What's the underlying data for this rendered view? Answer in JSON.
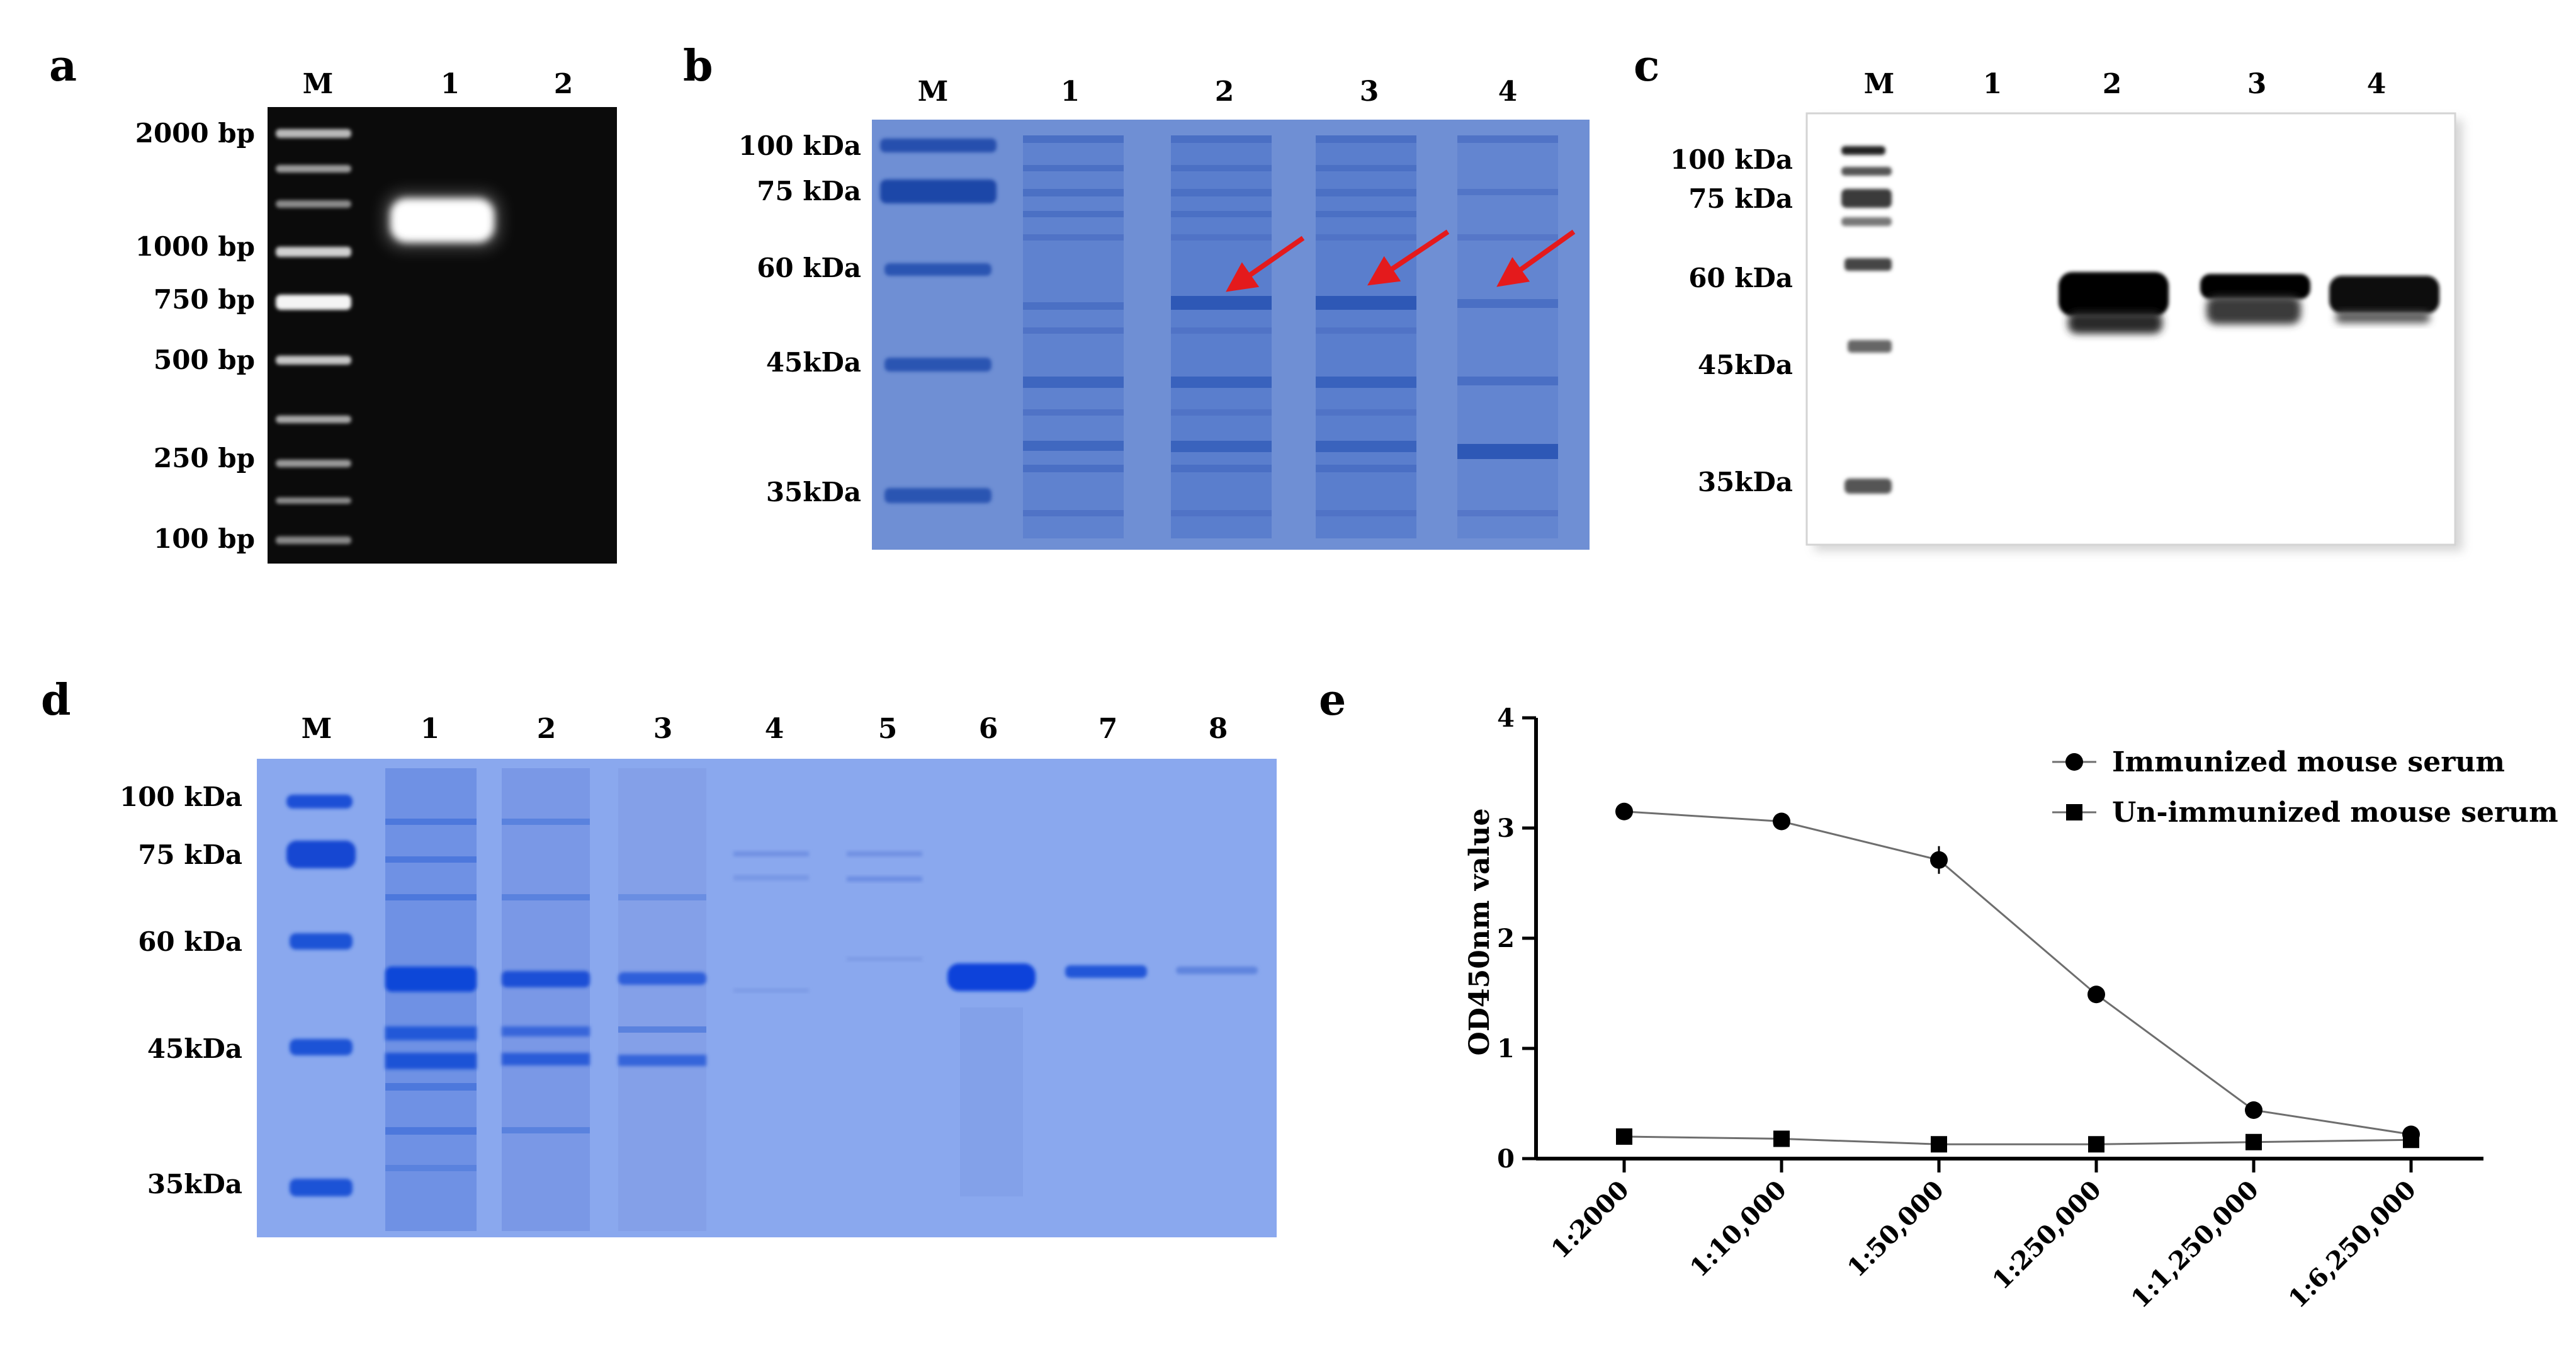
{
  "panels": {
    "a": {
      "label": "a",
      "lanes": [
        "M",
        "1",
        "2"
      ],
      "markers": [
        "2000 bp",
        "1000 bp",
        "750 bp",
        "500 bp",
        "250 bp",
        "100 bp"
      ]
    },
    "b": {
      "label": "b",
      "lanes": [
        "M",
        "1",
        "2",
        "3",
        "4"
      ],
      "markers": [
        "100 kDa",
        "75 kDa",
        "60 kDa",
        "45kDa",
        "35kDa"
      ],
      "arrow_color": "#e41a1c"
    },
    "c": {
      "label": "c",
      "lanes": [
        "M",
        "1",
        "2",
        "3",
        "4"
      ],
      "markers": [
        "100 kDa",
        "75 kDa",
        "60 kDa",
        "45kDa",
        "35kDa"
      ]
    },
    "d": {
      "label": "d",
      "lanes": [
        "M",
        "1",
        "2",
        "3",
        "4",
        "5",
        "6",
        "7",
        "8"
      ],
      "markers": [
        "100 kDa",
        "75 kDa",
        "60 kDa",
        "45kDa",
        "35kDa"
      ]
    },
    "e": {
      "label": "e"
    }
  },
  "chart_data": {
    "type": "line",
    "title": "",
    "ylabel": "OD450nm value",
    "xlabel": "",
    "categories": [
      "1:2000",
      "1:10,000",
      "1:50,000",
      "1:250,000",
      "1:1,250,000",
      "1:6,250,000"
    ],
    "ylim": [
      0,
      4
    ],
    "yticks": [
      "0",
      "1",
      "2",
      "3",
      "4"
    ],
    "legend_position": "top-right",
    "series": [
      {
        "name": "Immunized mouse serum",
        "marker": "circle",
        "values": [
          3.15,
          3.06,
          2.71,
          1.49,
          0.44,
          0.22
        ]
      },
      {
        "name": "Un-immunized mouse serum",
        "marker": "square",
        "values": [
          0.2,
          0.18,
          0.13,
          0.13,
          0.15,
          0.17
        ]
      }
    ]
  }
}
